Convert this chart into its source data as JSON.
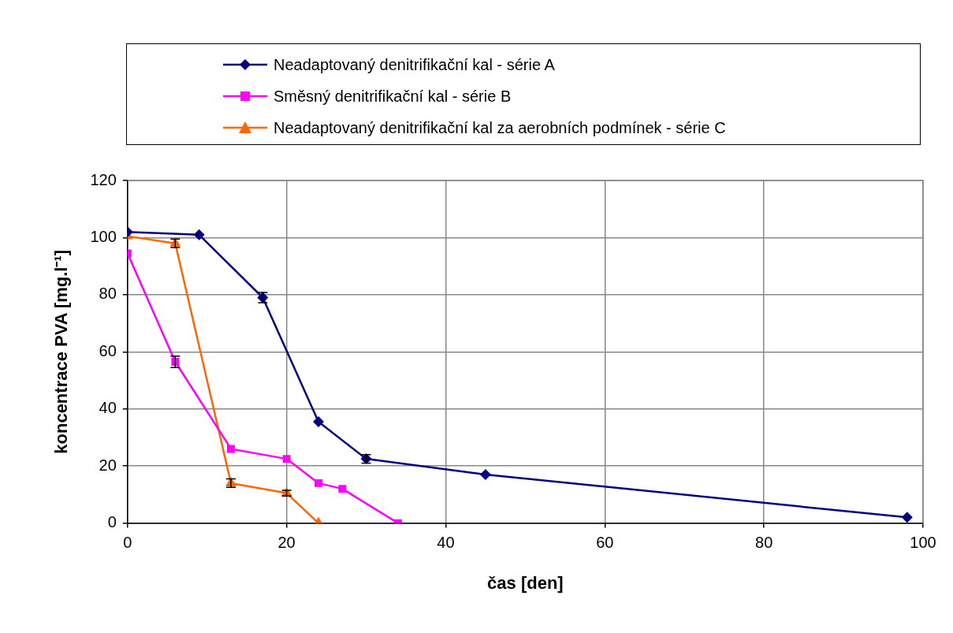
{
  "chart_data": {
    "type": "line",
    "xlabel": "čas [den]",
    "ylabel": "koncentrace PVA [mg.l⁻¹]",
    "xlim": [
      0,
      100
    ],
    "xticks": [
      0,
      20,
      40,
      60,
      80,
      100
    ],
    "ylim": [
      0,
      120
    ],
    "yticks": [
      0,
      20,
      40,
      60,
      80,
      100,
      120
    ],
    "grid": true,
    "legend": "top",
    "line_style": "solid",
    "series": [
      {
        "name": "Neadaptovaný denitrifikační kal - série A",
        "color": "#000080",
        "marker": "diamond",
        "x": [
          0,
          9,
          17,
          24,
          30,
          45,
          98
        ],
        "values": [
          102,
          101,
          79,
          35.5,
          22.5,
          17,
          2
        ],
        "errors": [
          null,
          null,
          1.8,
          null,
          1.5,
          null,
          null
        ]
      },
      {
        "name": "Směsný denitrifikační kal - série B",
        "color": "#ff00ff",
        "marker": "square",
        "x": [
          0,
          6,
          13,
          20,
          24,
          27,
          34
        ],
        "values": [
          94.5,
          56.5,
          26,
          22.5,
          14,
          12,
          0
        ],
        "errors": [
          null,
          2,
          null,
          null,
          null,
          null,
          null
        ]
      },
      {
        "name": "Neadaptovaný denitrifikační kal za aerobních podmínek - série C",
        "color": "#ff6600",
        "marker": "triangle",
        "x": [
          0,
          6,
          13,
          20,
          24
        ],
        "values": [
          100.5,
          98,
          14,
          10.5,
          0
        ],
        "errors": [
          null,
          1.5,
          1.5,
          1,
          null
        ]
      }
    ]
  }
}
